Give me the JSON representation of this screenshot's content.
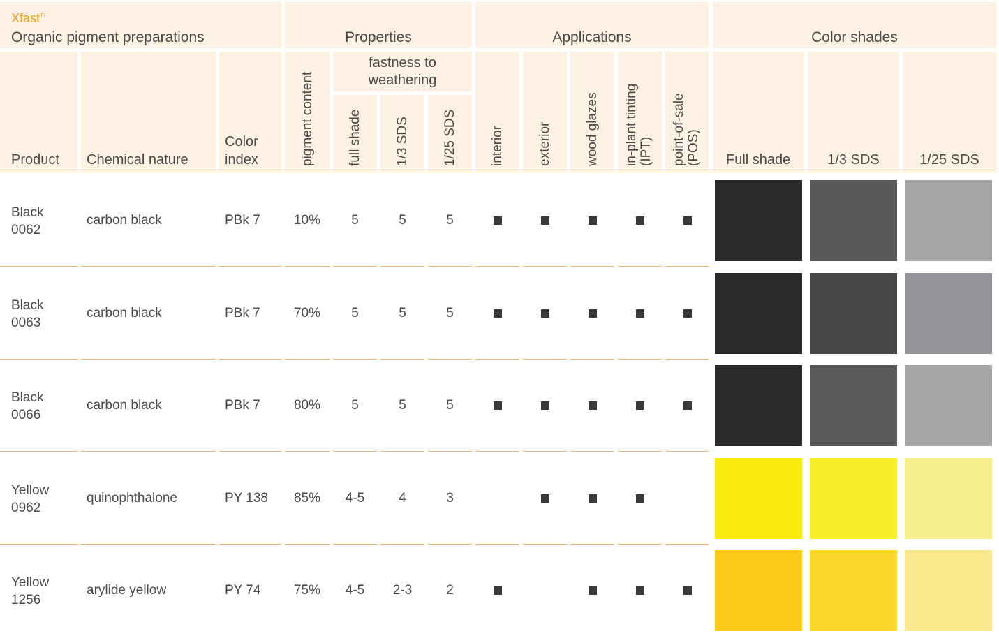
{
  "header": {
    "brand": "Xfast",
    "brand_mark": "®",
    "subtitle": "Organic pigment preparations",
    "groups": {
      "properties": "Properties",
      "applications": "Applications",
      "color_shades": "Color shades"
    },
    "weathering_line1": "fastness to",
    "weathering_line2": "weathering",
    "columns": {
      "product": "Product",
      "chemical_nature": "Chemical nature",
      "color_index_1": "Color",
      "color_index_2": "index",
      "pigment_content": "pigment content",
      "full_shade": "full shade",
      "sds_1_3": "1/3 SDS",
      "sds_1_25": "1/25 SDS",
      "interior": "interior",
      "exterior": "exterior",
      "wood_glazes": "wood glazes",
      "ipt_1": "in-plant tinting",
      "ipt_2": "(IPT)",
      "pos_1": "point-of-sale",
      "pos_2": "(POS)",
      "shade_full": "Full shade",
      "shade_1_3": "1/3 SDS",
      "shade_1_25": "1/25 SDS"
    }
  },
  "rows": [
    {
      "product_1": "Black",
      "product_2": "0062",
      "chemical": "carbon black",
      "color_index": "PBk 7",
      "pigment": "10%",
      "full": "5",
      "sds3": "5",
      "sds25": "5",
      "apps": [
        true,
        true,
        true,
        true,
        true
      ],
      "shades": [
        "#2b2a2b",
        "#58585a",
        "#a5a6a5"
      ]
    },
    {
      "product_1": "Black",
      "product_2": "0063",
      "chemical": "carbon black",
      "color_index": "PBk 7",
      "pigment": "70%",
      "full": "5",
      "sds3": "5",
      "sds25": "5",
      "apps": [
        true,
        true,
        true,
        true,
        true
      ],
      "shades": [
        "#2b2a2b",
        "#48484a",
        "#93959b"
      ]
    },
    {
      "product_1": "Black",
      "product_2": "0066",
      "chemical": "carbon black",
      "color_index": "PBk 7",
      "pigment": "80%",
      "full": "5",
      "sds3": "5",
      "sds25": "5",
      "apps": [
        true,
        true,
        true,
        true,
        true
      ],
      "shades": [
        "#2b2a2b",
        "#59595c",
        "#a5a7a8"
      ]
    },
    {
      "product_1": "Yellow",
      "product_2": "0962",
      "chemical": "quinophthalone",
      "color_index": "PY 138",
      "pigment": "85%",
      "full": "4-5",
      "sds3": "4",
      "sds25": "3",
      "apps": [
        false,
        true,
        true,
        true,
        false
      ],
      "shades": [
        "#f8ea0d",
        "#f6ee2b",
        "#f4ef8a"
      ]
    },
    {
      "product_1": "Yellow",
      "product_2": "1256",
      "chemical": "arylide yellow",
      "color_index": "PY 74",
      "pigment": "75%",
      "full": "4-5",
      "sds3": "2-3",
      "sds25": "2",
      "apps": [
        true,
        false,
        true,
        true,
        true
      ],
      "shades": [
        "#fcc81a",
        "#f9d72b",
        "#f9e88c"
      ]
    }
  ]
}
